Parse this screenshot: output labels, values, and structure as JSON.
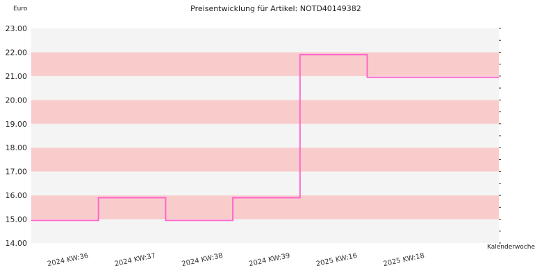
{
  "chart_data": {
    "type": "line",
    "title": "Preisentwicklung für Artikel: NOTD40149382",
    "ylabel": "Euro",
    "xlabel": "Kalenderwoche",
    "ylim": [
      14,
      23
    ],
    "y_ticks": [
      "14.00",
      "15.00",
      "16.00",
      "17.00",
      "18.00",
      "19.00",
      "20.00",
      "21.00",
      "22.00",
      "23.00"
    ],
    "categories": [
      "2024 KW:36",
      "2024 KW:37",
      "2024 KW:38",
      "2024 KW:39",
      "2025 KW:16",
      "2025 KW:18"
    ],
    "step": true,
    "series": [
      {
        "values": [
          14.95,
          15.9,
          14.95,
          15.9,
          21.9,
          20.95
        ],
        "color": "#ff66cc"
      }
    ],
    "band_colors": [
      "#f9cccc",
      "#f4f4f4"
    ],
    "grid": false
  }
}
